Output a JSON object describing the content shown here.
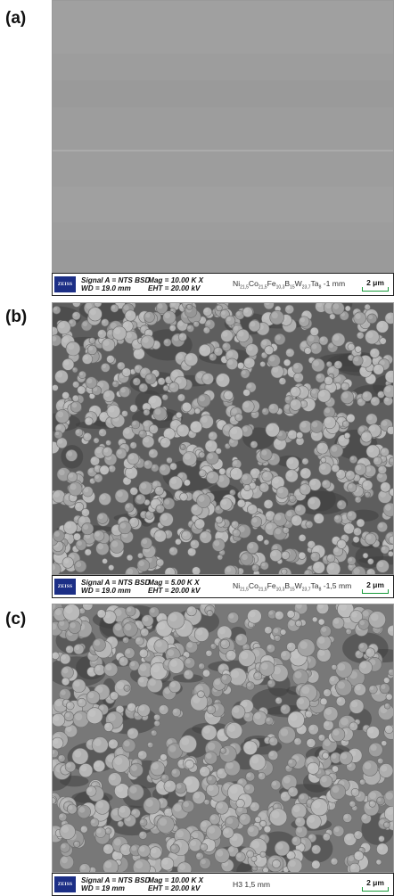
{
  "panels": [
    {
      "label": "(a)",
      "logo": "ZEISS",
      "signal": "Signal A = NTS BSD",
      "mag": "Mag = 10.00 K X",
      "wd": "WD = 19.0 mm",
      "eht": "EHT = 20.00 kV",
      "sample_parts": [
        "Ni",
        "21,5",
        "Co",
        "21,5",
        "Fe",
        "10,3",
        "B",
        "15",
        "W",
        "23,7",
        "Ta",
        "8",
        " -1 mm"
      ],
      "scale": "2 μm"
    },
    {
      "label": "(b)",
      "logo": "ZEISS",
      "signal": "Signal A = NTS BSD",
      "mag": "Mag =   5.00 K X",
      "wd": "WD = 19.0 mm",
      "eht": "EHT = 20.00 kV",
      "sample_parts": [
        "Ni",
        "21,5",
        "Co",
        "21,5",
        "Fe",
        "10,3",
        "B",
        "15",
        "W",
        "23,7",
        "Ta",
        "8",
        " -1,5 mm"
      ],
      "scale": "2 μm"
    },
    {
      "label": "(c)",
      "logo": "ZEISS",
      "signal": "Signal A = NTS BSD",
      "mag": "Mag = 10.00 K X",
      "wd": "WD = 19 mm",
      "eht": "EHT = 20.00 kV",
      "sample_text": "H3 1,5 mm",
      "scale": "2 μm"
    }
  ]
}
